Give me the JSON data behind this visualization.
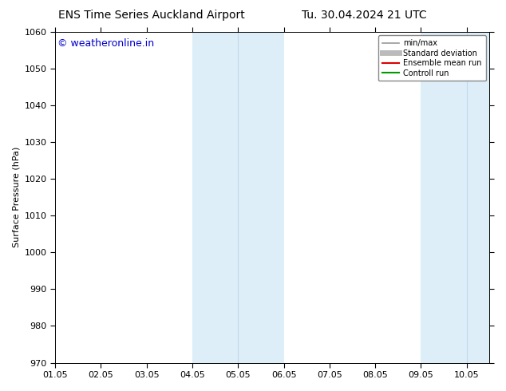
{
  "title_left": "ENS Time Series Auckland Airport",
  "title_right": "Tu. 30.04.2024 21 UTC",
  "ylabel": "Surface Pressure (hPa)",
  "ylim": [
    970,
    1060
  ],
  "yticks": [
    970,
    980,
    990,
    1000,
    1010,
    1020,
    1030,
    1040,
    1050,
    1060
  ],
  "xlim": [
    0.0,
    9.5
  ],
  "xtick_labels": [
    "01.05",
    "02.05",
    "03.05",
    "04.05",
    "05.05",
    "06.05",
    "07.05",
    "08.05",
    "09.05",
    "10.05"
  ],
  "xtick_positions": [
    0,
    1,
    2,
    3,
    4,
    5,
    6,
    7,
    8,
    9
  ],
  "shaded_regions": [
    {
      "xmin": 3.0,
      "xmax": 5.0,
      "color": "#ddeef8"
    },
    {
      "xmin": 8.0,
      "xmax": 9.5,
      "color": "#ddeef8"
    }
  ],
  "dividing_lines": [
    {
      "x": 4.0,
      "color": "#c0d8ed",
      "lw": 0.8
    },
    {
      "x": 9.0,
      "color": "#c0d8ed",
      "lw": 0.8
    }
  ],
  "watermark_text": "© weatheronline.in",
  "watermark_color": "#0000cc",
  "watermark_fontsize": 9,
  "legend_items": [
    {
      "label": "min/max",
      "color": "#999999",
      "linestyle": "-",
      "lw": 1.2
    },
    {
      "label": "Standard deviation",
      "color": "#bbbbbb",
      "linestyle": "-",
      "lw": 5
    },
    {
      "label": "Ensemble mean run",
      "color": "#dd0000",
      "linestyle": "-",
      "lw": 1.5
    },
    {
      "label": "Controll run",
      "color": "#009900",
      "linestyle": "-",
      "lw": 1.5
    }
  ],
  "bg_color": "#ffffff",
  "title_fontsize": 10,
  "axis_fontsize": 8,
  "tick_fontsize": 8
}
